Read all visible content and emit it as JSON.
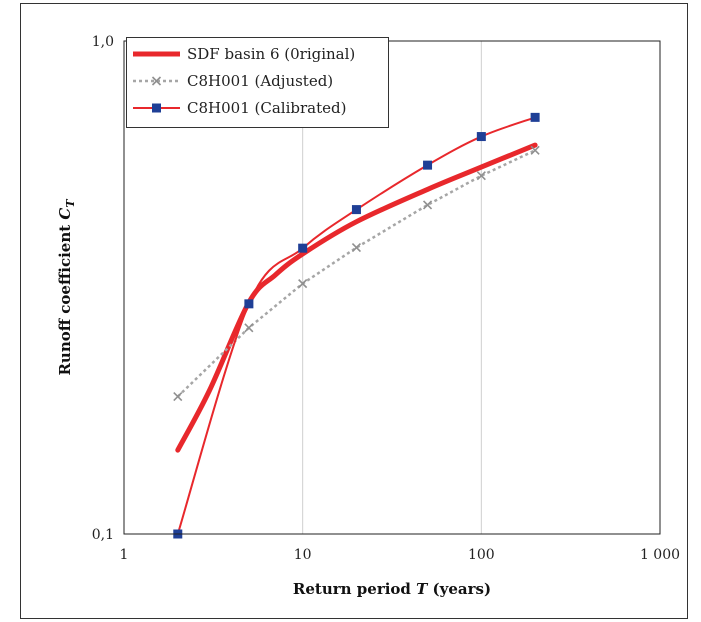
{
  "chart_data": {
    "type": "line",
    "xlabel_prefix": "Return period ",
    "xlabel_var": "T",
    "xlabel_suffix": " (years)",
    "ylabel_prefix": "Runoff coefficient ",
    "ylabel_var": "C",
    "ylabel_sub": "T",
    "x_scale": "log",
    "y_scale": "log",
    "xlim": [
      1,
      1000
    ],
    "ylim": [
      0.1,
      1.0
    ],
    "x_ticks": [
      {
        "value": 1,
        "label": "1"
      },
      {
        "value": 10,
        "label": "10"
      },
      {
        "value": 100,
        "label": "100"
      },
      {
        "value": 1000,
        "label": "1 000"
      }
    ],
    "y_ticks": [
      {
        "value": 0.1,
        "label": "0,1"
      },
      {
        "value": 1.0,
        "label": "1,0"
      }
    ],
    "grid": "vertical major lines",
    "legend_position": "top-left",
    "series": [
      {
        "name": "SDF basin 6 (0riginal)",
        "color": "#e8282c",
        "style": "thick solid, smooth",
        "x": [
          2,
          3,
          5,
          7,
          10,
          20,
          50,
          100,
          200
        ],
        "y": [
          0.148,
          0.195,
          0.295,
          0.335,
          0.37,
          0.43,
          0.5,
          0.555,
          0.615
        ]
      },
      {
        "name": "C8H001 (Adjusted)",
        "color": "#a6a6a6",
        "marker_color": "#909090",
        "style": "dotted with x markers",
        "x": [
          2,
          5,
          10,
          20,
          50,
          100,
          200
        ],
        "y": [
          0.19,
          0.262,
          0.322,
          0.381,
          0.465,
          0.533,
          0.6
        ]
      },
      {
        "name": "C8H001 (Calibrated)",
        "color": "#e8282c",
        "marker_color": "#1f3f96",
        "style": "thin solid with square markers",
        "x": [
          2,
          5,
          10,
          20,
          50,
          100,
          200
        ],
        "y": [
          0.1,
          0.293,
          0.38,
          0.455,
          0.56,
          0.64,
          0.7
        ]
      }
    ]
  }
}
